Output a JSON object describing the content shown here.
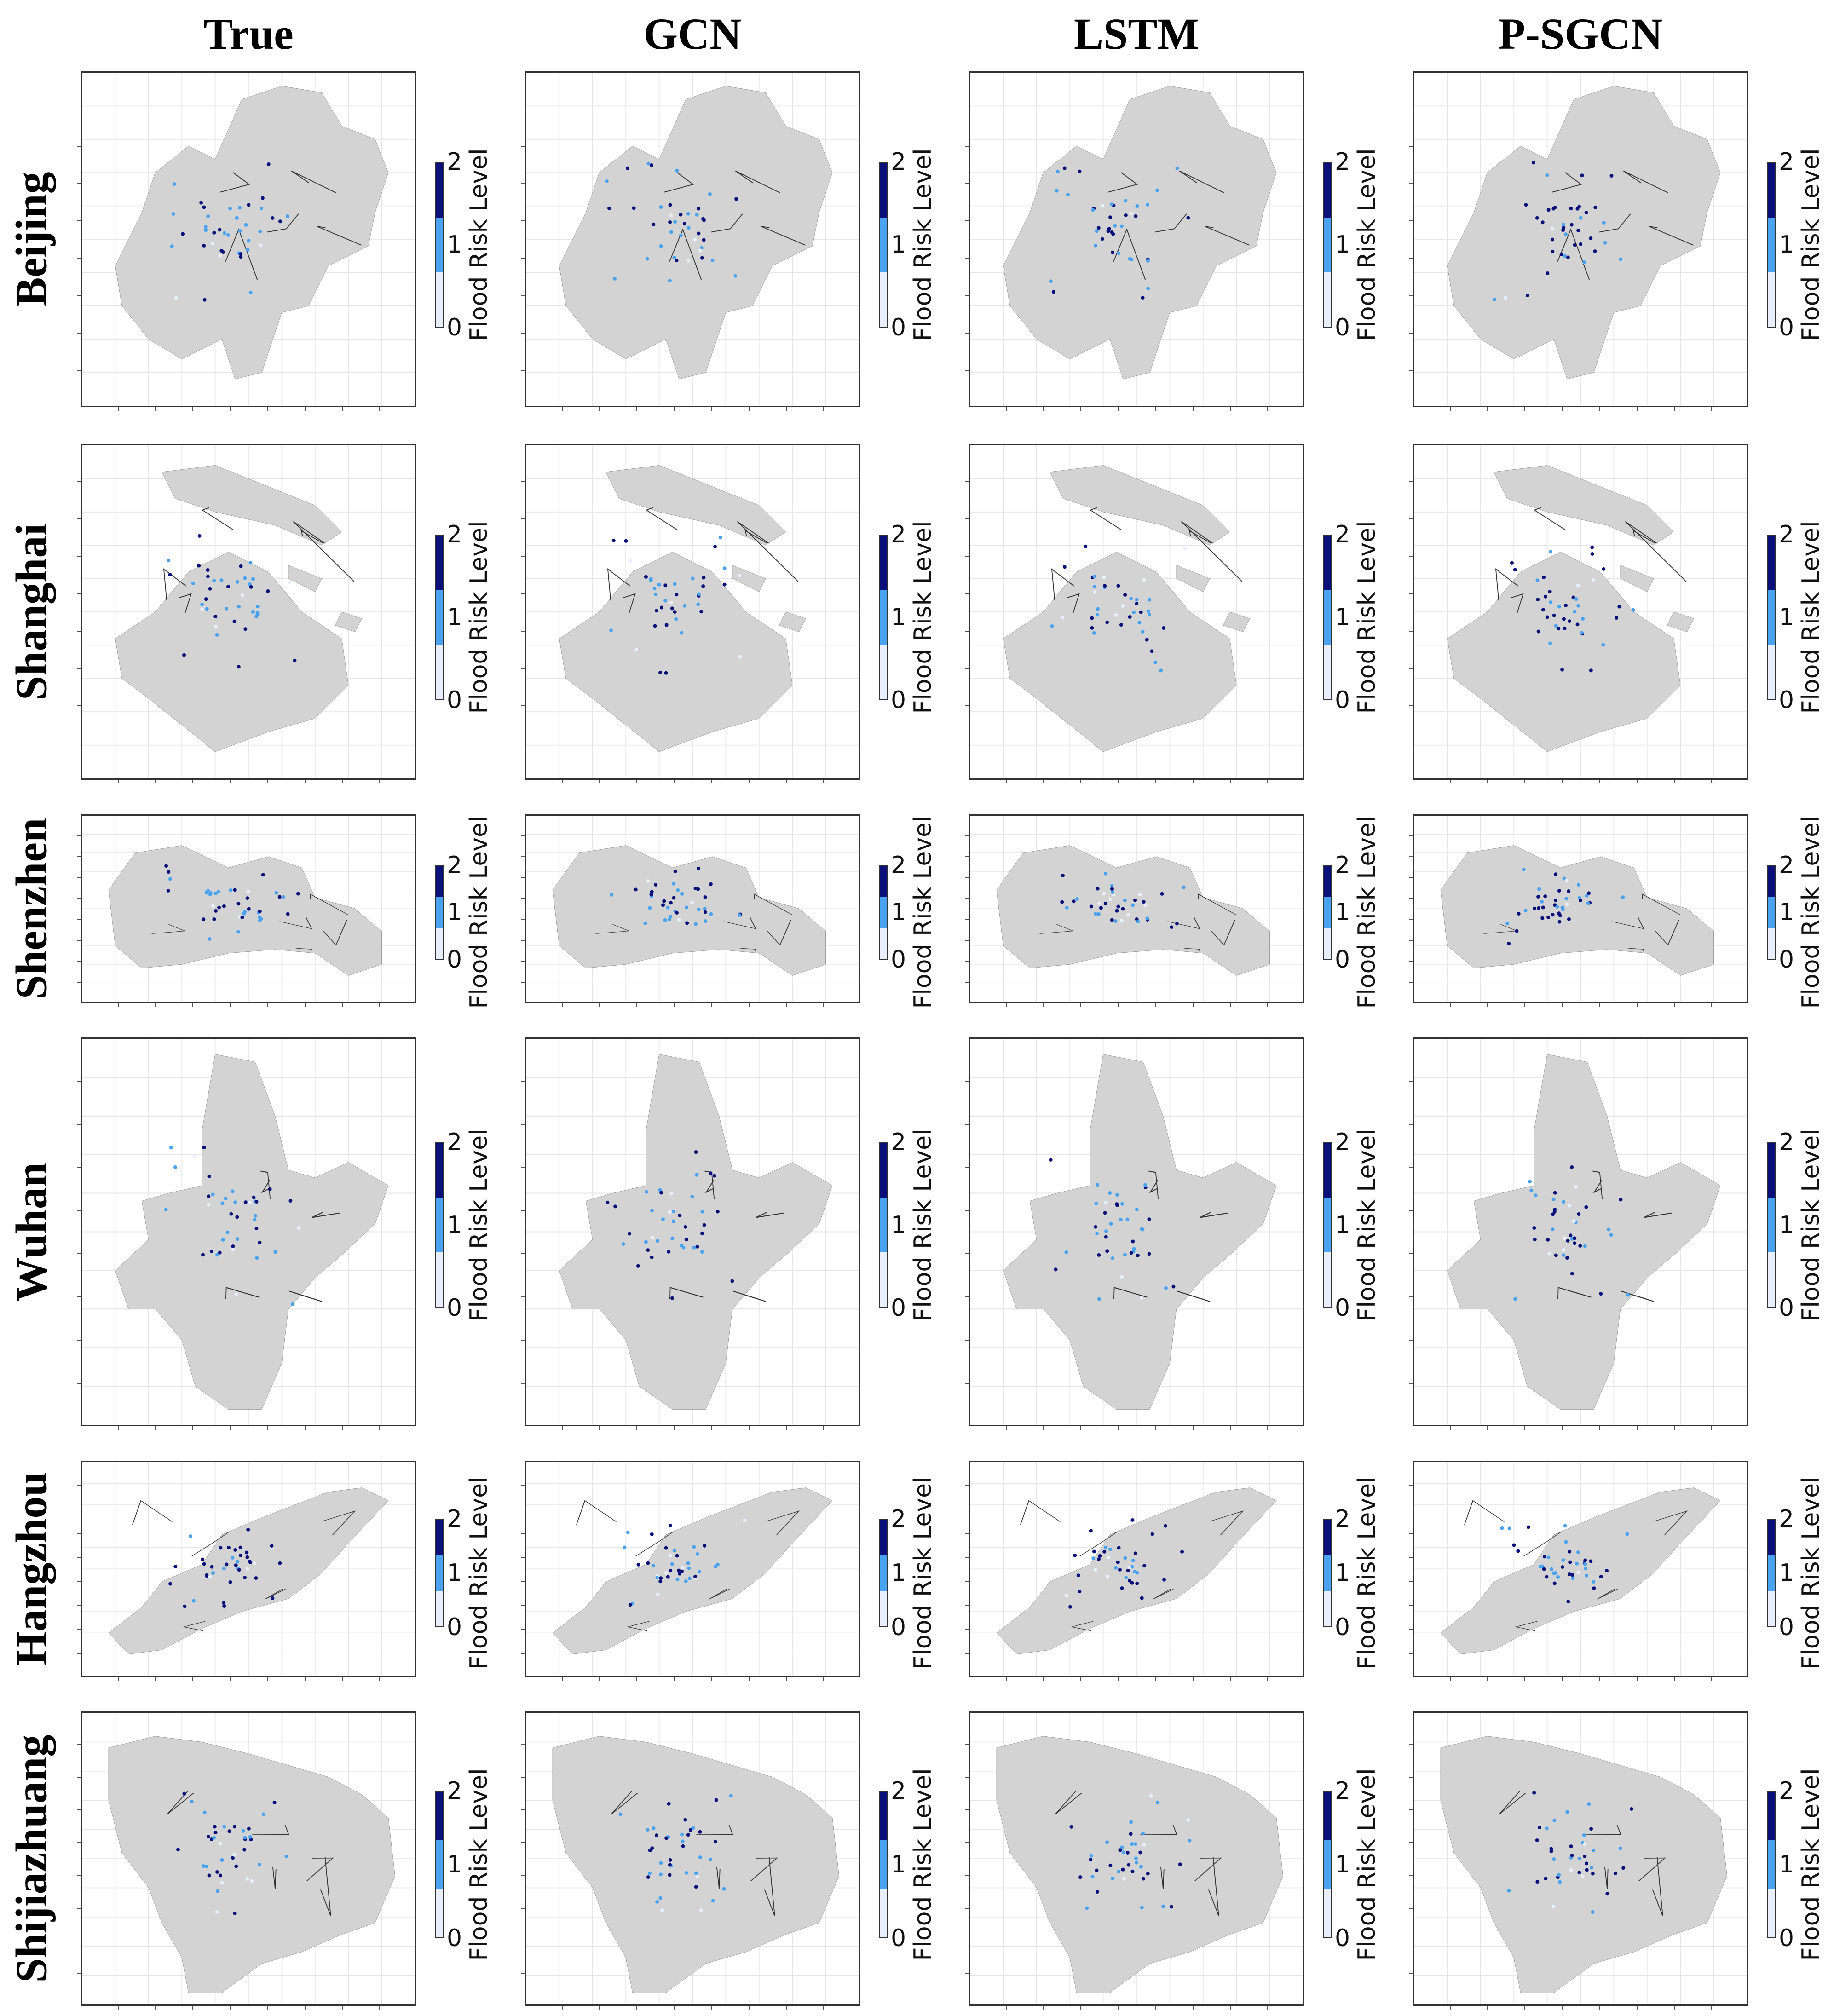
{
  "columns": [
    "True",
    "GCN",
    "LSTM",
    "P-SGCN"
  ],
  "rows": [
    "Beijing",
    "Shanghai",
    "Shenzhen",
    "Wuhan",
    "Hangzhou",
    "Shijiazhuang"
  ],
  "colorbar": {
    "label": "Flood Risk Level",
    "ticks": [
      "2",
      "1",
      "0"
    ],
    "colors": {
      "level_2": "#0b0f7a",
      "level_1": "#4aa3f0",
      "level_0": "#e8eefc"
    }
  },
  "colors": {
    "land": "#d3d3d3",
    "border": "#333333",
    "grid": "#e6e6e6"
  },
  "chart_data": {
    "type": "map-grid",
    "levels": [
      0,
      1,
      2
    ],
    "legend_title": "Flood Risk Level"
  }
}
